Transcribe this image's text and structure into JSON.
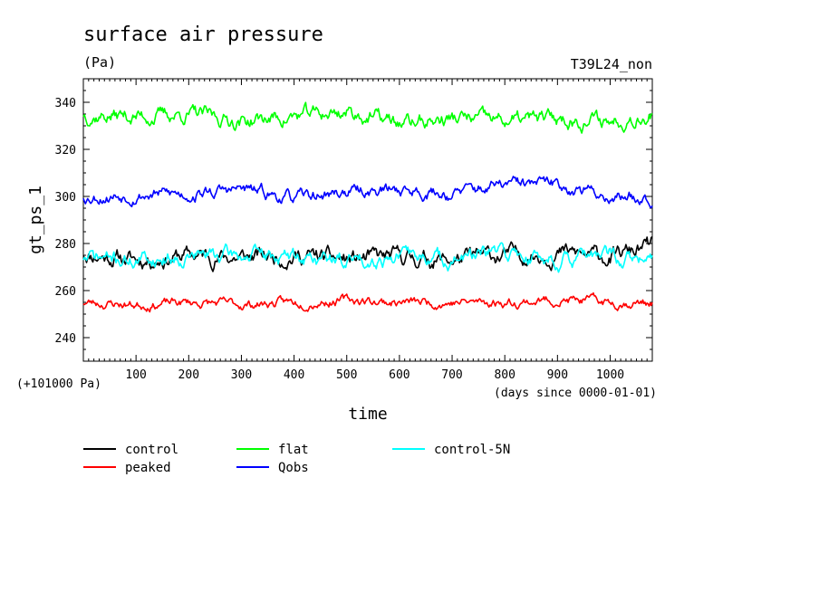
{
  "chart_data": {
    "type": "line",
    "title": "surface air pressure",
    "units": "(Pa)",
    "run_label": "T39L24_non",
    "ylabel": "gt_ps_1",
    "xlabel": "time",
    "y_offset_note": "(+101000 Pa)",
    "x_unit_note": "(days since 0000-01-01)",
    "xlim": [
      0,
      1080
    ],
    "ylim": [
      230,
      350
    ],
    "x_ticks": [
      100,
      200,
      300,
      400,
      500,
      600,
      700,
      800,
      900,
      1000
    ],
    "y_ticks": [
      240,
      260,
      280,
      300,
      320,
      340
    ],
    "grid": false,
    "legend_position": "bottom",
    "series": [
      {
        "name": "control",
        "color": "#000000",
        "mean": 274,
        "amp": 3.2,
        "seed": 11,
        "x": [
          0,
          100,
          200,
          300,
          400,
          500,
          600,
          700,
          800,
          900,
          1000,
          1080
        ],
        "y": [
          276,
          273,
          275,
          274,
          275,
          273,
          274,
          273,
          275,
          276,
          274,
          279
        ]
      },
      {
        "name": "peaked",
        "color": "#ff0000",
        "mean": 255,
        "amp": 1.8,
        "seed": 23,
        "x": [
          0,
          100,
          200,
          300,
          400,
          500,
          600,
          700,
          800,
          900,
          1000,
          1080
        ],
        "y": [
          255,
          254,
          255,
          254,
          255,
          256,
          255,
          255,
          255,
          256,
          255,
          255
        ]
      },
      {
        "name": "flat",
        "color": "#00ff00",
        "mean": 333,
        "amp": 3.0,
        "seed": 37,
        "x": [
          0,
          100,
          200,
          300,
          400,
          500,
          600,
          700,
          800,
          900,
          1000,
          1080
        ],
        "y": [
          335,
          334,
          335,
          332,
          334,
          336,
          331,
          333,
          332,
          333,
          332,
          336
        ]
      },
      {
        "name": "Qobs",
        "color": "#0000ff",
        "mean": 301,
        "amp": 2.4,
        "seed": 53,
        "x": [
          0,
          100,
          200,
          300,
          400,
          500,
          600,
          700,
          800,
          900,
          1000,
          1080
        ],
        "y": [
          300,
          301,
          301,
          303,
          299,
          302,
          303,
          301,
          305,
          305,
          300,
          300
        ]
      },
      {
        "name": "control-5N",
        "color": "#00ffff",
        "mean": 274,
        "amp": 3.0,
        "seed": 71,
        "x": [
          0,
          100,
          200,
          300,
          400,
          500,
          600,
          700,
          800,
          900,
          1000,
          1080
        ],
        "y": [
          274,
          273,
          275,
          275,
          274,
          273,
          275,
          273,
          276,
          273,
          274,
          272
        ]
      }
    ]
  }
}
